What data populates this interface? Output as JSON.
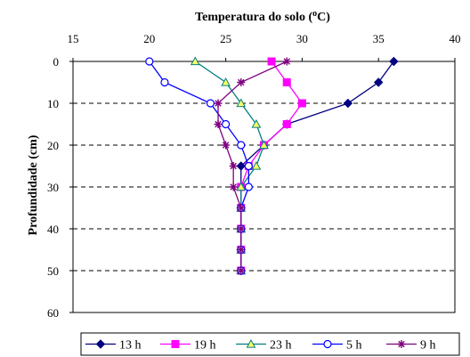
{
  "chart_data": {
    "type": "line",
    "title": "Temperatura do solo (°C)",
    "title_parts": {
      "pre": "Temperatura do solo (",
      "sup": "o",
      "post": "C)"
    },
    "xlabel": "Temperatura do solo (°C)",
    "ylabel": "Profundidade (cm)",
    "xlim": [
      15,
      40
    ],
    "ylim": [
      0,
      60
    ],
    "y_inverted": true,
    "x_axis_position": "top",
    "x_ticks": [
      15,
      20,
      25,
      30,
      35,
      40
    ],
    "y_ticks": [
      0,
      10,
      20,
      30,
      40,
      50,
      60
    ],
    "x_tick_labels": [
      "15",
      "20",
      "25",
      "30",
      "35",
      "40"
    ],
    "y_tick_labels": [
      "0",
      "10",
      "20",
      "30",
      "40",
      "50",
      "60"
    ],
    "grid": "horizontal dashed",
    "legend": "bottom",
    "depths": [
      0,
      5,
      10,
      15,
      20,
      25,
      30,
      35,
      40,
      45,
      50
    ],
    "series": [
      {
        "name": "13 h",
        "color": "#000080",
        "marker": "diamond",
        "temps": [
          36,
          35,
          33,
          29,
          27.5,
          26,
          26,
          26,
          26,
          26,
          26
        ]
      },
      {
        "name": "19 h",
        "color": "#ff00ff",
        "marker": "square",
        "temps": [
          28,
          29,
          30,
          29,
          27.5,
          26.5,
          26,
          26,
          26,
          26,
          26
        ]
      },
      {
        "name": "23 h",
        "color": "#008080",
        "marker": "triangle",
        "temps": [
          23,
          25,
          26,
          27,
          27.5,
          27,
          26,
          26,
          26,
          26,
          26
        ]
      },
      {
        "name": "5 h",
        "color": "#0000ff",
        "marker": "circle",
        "temps": [
          20,
          21,
          24,
          25,
          26,
          26.5,
          26.5,
          26,
          26,
          26,
          26
        ]
      },
      {
        "name": "9 h",
        "color": "#800080",
        "marker": "star",
        "temps": [
          29,
          26,
          24.5,
          24.5,
          25,
          25.5,
          25.5,
          26,
          26,
          26,
          26
        ]
      }
    ]
  }
}
